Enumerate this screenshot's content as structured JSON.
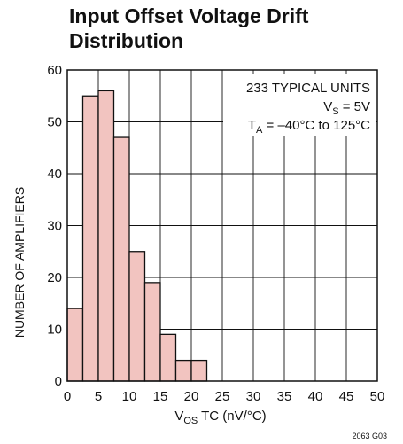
{
  "chart_data": {
    "type": "bar",
    "title_lines": [
      "Input Offset Voltage Drift",
      "Distribution"
    ],
    "xlabel": {
      "main": "V",
      "sub": "OS",
      "rest": " TC (nV/°C)"
    },
    "ylabel": "NUMBER OF AMPLIFIERS",
    "xlim": [
      0,
      50
    ],
    "ylim": [
      0,
      60
    ],
    "xticks": [
      0,
      5,
      10,
      15,
      20,
      25,
      30,
      35,
      40,
      45,
      50
    ],
    "yticks": [
      0,
      10,
      20,
      30,
      40,
      50,
      60
    ],
    "bins": [
      {
        "x0": 0,
        "x1": 2.5,
        "value": 14
      },
      {
        "x0": 2.5,
        "x1": 5,
        "value": 55
      },
      {
        "x0": 5,
        "x1": 7.5,
        "value": 56
      },
      {
        "x0": 7.5,
        "x1": 10,
        "value": 47
      },
      {
        "x0": 10,
        "x1": 12.5,
        "value": 25
      },
      {
        "x0": 12.5,
        "x1": 15,
        "value": 19
      },
      {
        "x0": 15,
        "x1": 17.5,
        "value": 9
      },
      {
        "x0": 17.5,
        "x1": 20,
        "value": 4
      },
      {
        "x0": 20,
        "x1": 22.5,
        "value": 4
      }
    ],
    "grid": true,
    "bar_color": "#f2c4c0",
    "annotations": {
      "units": "233 TYPICAL UNITS",
      "vs": {
        "main": "V",
        "sub": "S",
        "rest": " = 5V"
      },
      "ta": {
        "main": "T",
        "sub": "A",
        "rest": " = –40°C to 125°C"
      }
    },
    "code": "2063 G03"
  }
}
